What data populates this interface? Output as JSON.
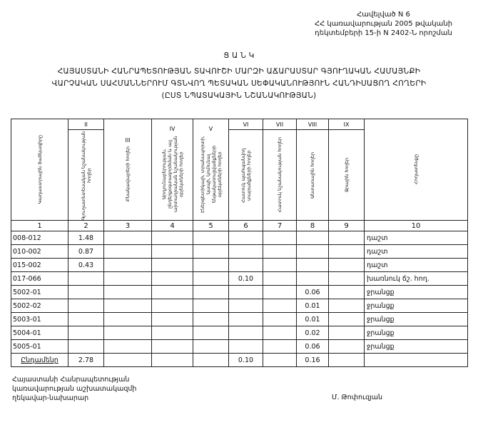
{
  "annex": {
    "line1": "Հավելված N 6",
    "line2": "ՀՀ կառավարության 2005 թվականի",
    "line3": "դեկտեմբերի 15-ի N 2402-Ն որոշման"
  },
  "title": {
    "heading": "Ց Ա Ն Կ",
    "line1": "ՀԱՅԱՍՏԱՆԻ ՀԱՆՐԱՊԵՏՈՒԹՅԱՆ ՏԱՎՈՒՇԻ ՄԱՐԶԻ ԱՃԱՐԱՍՏԱՐ ԳՅՈՒՂԱԿԱՆ ՀԱՄԱՅՆՔԻ",
    "line2": "ՎԱՐՉԱԿԱՆ ՍԱՀՄԱՆՆԵՐՈՒՄ ԳՏՆՎՈՂ ՊԵՏԱԿԱՆ ՍԵՓԱԿԱՆՈՒԹՅՈՒՆ ՀԱՆԴԻՍԱՑՈՂ ՀՈՂԵՐԻ",
    "line3": "(ԸՍՏ ՆՊԱՏԱԿԱՅԻՆ ՆՇԱՆԱԿՈՒԹՅԱՆ)"
  },
  "table": {
    "roman": [
      "II",
      "III",
      "IV",
      "V",
      "VI",
      "VII",
      "VIII",
      "IX"
    ],
    "headers": [
      "Կադաստրային ծածկագիրը",
      "Գյուղատնտեսական նշանակության հողեր",
      "Բնակավայրերի հողեր",
      "Արդյունաբերության, ընդերքօգտագործման և այլ արտադրական նշանակության օբյեկտների հողեր",
      "Էներգետիկայի, տրանսպորտի, կապի, կոմունալ ենթակառուցվածքների օբյեկտների հողեր",
      "Հատուկ պահպանվող տարածքների հողեր",
      "Հատուկ նշանակության հողեր",
      "Անտառային հողեր",
      "Ջրային հողեր",
      "Հողատեսքը"
    ],
    "numbers": [
      "1",
      "2",
      "3",
      "4",
      "5",
      "6",
      "7",
      "8",
      "9",
      "10"
    ],
    "rows": [
      {
        "code": "008-012",
        "c2": "1.48",
        "c6": "",
        "c8": "",
        "land": "դաշտ"
      },
      {
        "code": "010-002",
        "c2": "0.87",
        "c6": "",
        "c8": "",
        "land": "դաշտ"
      },
      {
        "code": "015-002",
        "c2": "0.43",
        "c6": "",
        "c8": "",
        "land": "դաշտ"
      },
      {
        "code": "017-066",
        "c2": "",
        "c6": "0.10",
        "c8": "",
        "land": "խառնուկ ճշ. հող."
      },
      {
        "code": "5002-01",
        "c2": "",
        "c6": "",
        "c8": "0.06",
        "land": "ջրանցք"
      },
      {
        "code": "5002-02",
        "c2": "",
        "c6": "",
        "c8": "0.01",
        "land": "ջրանցք"
      },
      {
        "code": "5003-01",
        "c2": "",
        "c6": "",
        "c8": "0.01",
        "land": "ջրանցք"
      },
      {
        "code": "5004-01",
        "c2": "",
        "c6": "",
        "c8": "0.02",
        "land": "ջրանցք"
      },
      {
        "code": "5005-01",
        "c2": "",
        "c6": "",
        "c8": "0.06",
        "land": "ջրանցք"
      }
    ],
    "total": {
      "label": "Ընդամենը",
      "c2": "2.78",
      "c6": "0.10",
      "c8": "0.16"
    }
  },
  "footer": {
    "line1": "Հայաստանի Հանրապետության",
    "line2": "կառավարության աշխատակազմի",
    "line3": "ղեկավար-նախարար",
    "signatory": "Մ. Թոփուզյան"
  }
}
